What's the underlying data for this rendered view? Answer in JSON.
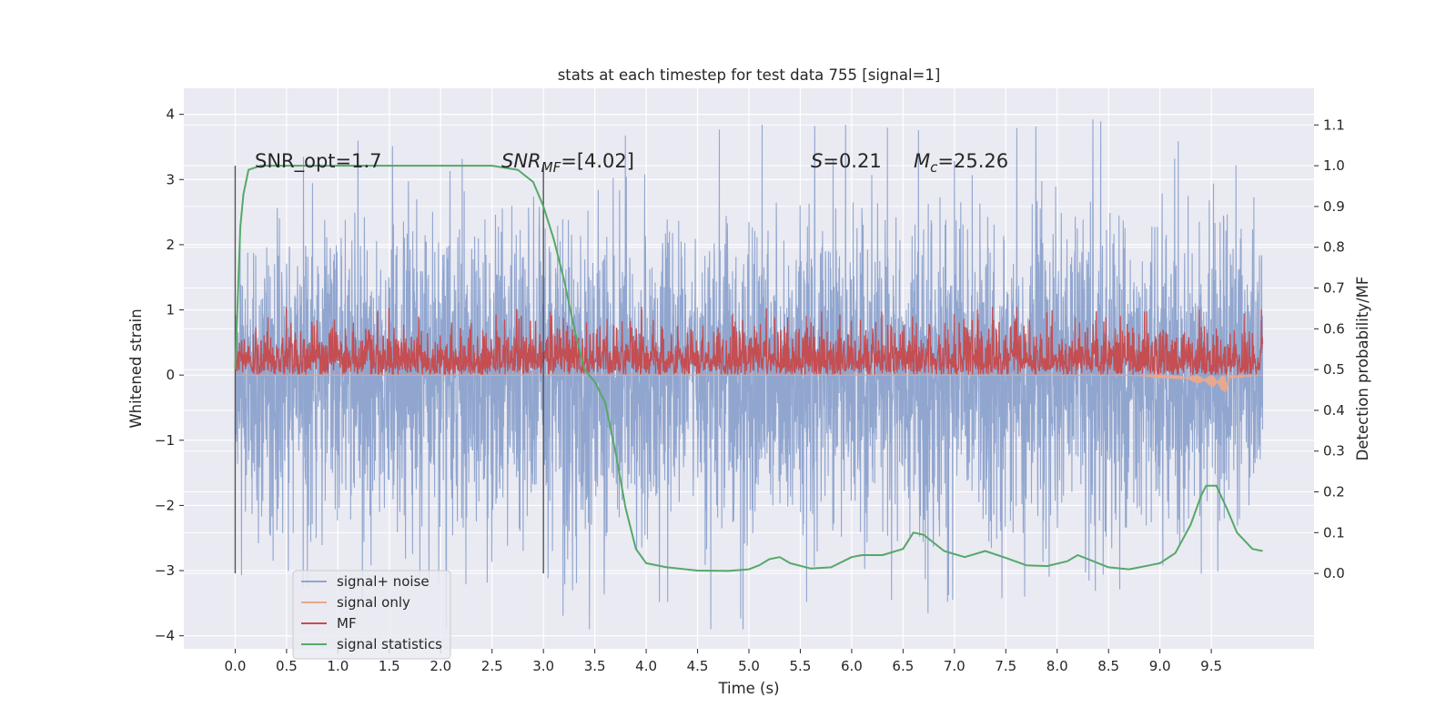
{
  "chart_data": {
    "type": "line",
    "title": "stats at each timestep for test data 755 [signal=1]",
    "xlabel": "Time (s)",
    "ylabel": "Whitened strain",
    "y2label": "Detection probability/MF",
    "xlim": [
      -0.5,
      10.5
    ],
    "ylim": [
      -4.2,
      4.4
    ],
    "y2lim": [
      -0.185,
      1.19
    ],
    "x_ticks": [
      "0.0",
      "0.5",
      "1.0",
      "1.5",
      "2.0",
      "2.5",
      "3.0",
      "3.5",
      "4.0",
      "4.5",
      "5.0",
      "5.5",
      "6.0",
      "6.5",
      "7.0",
      "7.5",
      "8.0",
      "8.5",
      "9.0",
      "9.5"
    ],
    "y_ticks": [
      "4",
      "3",
      "2",
      "1",
      "0",
      "−1",
      "−2",
      "−3",
      "−4"
    ],
    "y2_ticks": [
      "1.1",
      "1.0",
      "0.9",
      "0.8",
      "0.7",
      "0.6",
      "0.5",
      "0.4",
      "0.3",
      "0.2",
      "0.1",
      "0.0"
    ],
    "grid": true,
    "legend_position": "lower-left",
    "annotations": {
      "snr_opt": "SNR_opt=1.7",
      "snr_mf_prefix": "SNR",
      "snr_mf_sub": "MF",
      "snr_mf_suffix": "=[4.02]",
      "s_label": "S",
      "s_value": "=0.21",
      "mc_label": "M",
      "mc_sub": "c",
      "mc_value": "=25.26"
    },
    "vertical_markers": [
      0.0,
      3.0
    ],
    "series": [
      {
        "name": "signal+ noise",
        "color": "#91a6cf",
        "axis": "left",
        "x_range": [
          0.0,
          10.0
        ],
        "envelope_upper": [
          [
            0.0,
            2.0
          ],
          [
            0.2,
            2.3
          ],
          [
            0.6,
            2.6
          ],
          [
            1.0,
            2.7
          ],
          [
            2.0,
            2.9
          ],
          [
            3.0,
            2.8
          ],
          [
            4.0,
            2.8
          ],
          [
            5.0,
            3.0
          ],
          [
            6.0,
            3.0
          ],
          [
            7.0,
            2.9
          ],
          [
            8.0,
            3.0
          ],
          [
            9.0,
            3.1
          ],
          [
            9.5,
            3.2
          ],
          [
            10.0,
            2.7
          ]
        ],
        "envelope_lower": [
          [
            0.0,
            -2.0
          ],
          [
            0.1,
            -2.9
          ],
          [
            1.0,
            -2.6
          ],
          [
            2.0,
            -2.7
          ],
          [
            3.0,
            -2.6
          ],
          [
            3.4,
            -3.6
          ],
          [
            4.0,
            -2.9
          ],
          [
            5.0,
            -2.9
          ],
          [
            6.0,
            -2.9
          ],
          [
            7.0,
            -2.9
          ],
          [
            8.0,
            -2.8
          ],
          [
            9.0,
            -2.7
          ],
          [
            10.0,
            -2.3
          ]
        ]
      },
      {
        "name": "signal only",
        "color": "#e8a88f",
        "axis": "left",
        "points": [
          [
            0.0,
            0.0
          ],
          [
            8.6,
            0.0
          ],
          [
            8.9,
            -0.02
          ],
          [
            9.1,
            -0.05
          ],
          [
            9.3,
            -0.1
          ],
          [
            9.5,
            -0.18
          ],
          [
            9.62,
            -0.25
          ],
          [
            9.66,
            -0.38
          ],
          [
            9.67,
            -0.05
          ],
          [
            10.0,
            0.0
          ]
        ]
      },
      {
        "name": "MF",
        "color": "#c44e52",
        "axis": "left",
        "x_range": [
          0.0,
          10.0
        ],
        "y_base": 0.0,
        "y_typical_max": 0.55,
        "y_peak_max": 1.05
      },
      {
        "name": "signal statistics",
        "color": "#55a868",
        "axis": "right",
        "points": [
          [
            0.0,
            0.5
          ],
          [
            0.05,
            0.85
          ],
          [
            0.08,
            0.93
          ],
          [
            0.13,
            0.99
          ],
          [
            0.25,
            1.0
          ],
          [
            2.5,
            1.0
          ],
          [
            2.75,
            0.99
          ],
          [
            2.9,
            0.96
          ],
          [
            3.0,
            0.9
          ],
          [
            3.1,
            0.82
          ],
          [
            3.2,
            0.72
          ],
          [
            3.3,
            0.6
          ],
          [
            3.4,
            0.5
          ],
          [
            3.5,
            0.47
          ],
          [
            3.6,
            0.42
          ],
          [
            3.7,
            0.3
          ],
          [
            3.8,
            0.16
          ],
          [
            3.9,
            0.06
          ],
          [
            4.0,
            0.025
          ],
          [
            4.2,
            0.015
          ],
          [
            4.5,
            0.007
          ],
          [
            4.8,
            0.006
          ],
          [
            5.0,
            0.01
          ],
          [
            5.1,
            0.02
          ],
          [
            5.2,
            0.035
          ],
          [
            5.3,
            0.04
          ],
          [
            5.4,
            0.025
          ],
          [
            5.6,
            0.012
          ],
          [
            5.8,
            0.015
          ],
          [
            6.0,
            0.04
          ],
          [
            6.1,
            0.045
          ],
          [
            6.3,
            0.045
          ],
          [
            6.5,
            0.06
          ],
          [
            6.6,
            0.1
          ],
          [
            6.7,
            0.095
          ],
          [
            6.9,
            0.055
          ],
          [
            7.1,
            0.04
          ],
          [
            7.3,
            0.055
          ],
          [
            7.5,
            0.038
          ],
          [
            7.7,
            0.02
          ],
          [
            7.9,
            0.018
          ],
          [
            8.1,
            0.03
          ],
          [
            8.2,
            0.045
          ],
          [
            8.3,
            0.035
          ],
          [
            8.5,
            0.015
          ],
          [
            8.7,
            0.01
          ],
          [
            8.9,
            0.02
          ],
          [
            9.0,
            0.025
          ],
          [
            9.15,
            0.05
          ],
          [
            9.3,
            0.12
          ],
          [
            9.4,
            0.19
          ],
          [
            9.45,
            0.215
          ],
          [
            9.55,
            0.215
          ],
          [
            9.65,
            0.16
          ],
          [
            9.75,
            0.1
          ],
          [
            9.9,
            0.06
          ],
          [
            10.0,
            0.055
          ]
        ]
      }
    ]
  }
}
